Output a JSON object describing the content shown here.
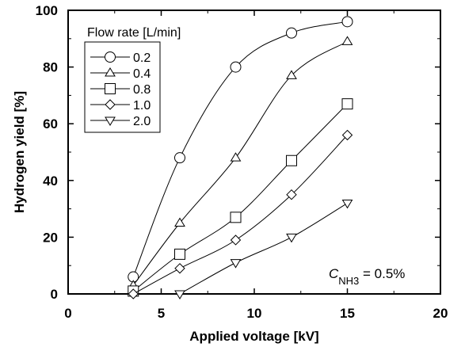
{
  "chart_data": {
    "type": "line",
    "xlabel": "Applied voltage [kV]",
    "ylabel": "Hydrogen yield [%]",
    "xlim": [
      0,
      20
    ],
    "ylim": [
      0,
      100
    ],
    "xticks": [
      "0",
      "5",
      "10",
      "15",
      "20"
    ],
    "yticks": [
      "0",
      "20",
      "40",
      "60",
      "80",
      "100"
    ],
    "grid": false,
    "legend": {
      "title": "Flow rate [L/min]",
      "position": "top-left"
    },
    "annotation": {
      "main": "C",
      "sub": "NH3",
      "rest": " = 0.5%",
      "position": "bottom-right"
    },
    "series": [
      {
        "name": "0.2",
        "marker": "circle",
        "x": [
          3.5,
          6,
          9,
          12,
          15
        ],
        "y": [
          6,
          48,
          80,
          92,
          96
        ]
      },
      {
        "name": "0.4",
        "marker": "triangle-up",
        "x": [
          3.5,
          6,
          9,
          12,
          15
        ],
        "y": [
          3,
          25,
          48,
          77,
          89
        ]
      },
      {
        "name": "0.8",
        "marker": "square",
        "x": [
          3.5,
          6,
          9,
          12,
          15
        ],
        "y": [
          1,
          14,
          27,
          47,
          67
        ]
      },
      {
        "name": "1.0",
        "marker": "diamond",
        "x": [
          3.5,
          6,
          9,
          12,
          15
        ],
        "y": [
          0,
          9,
          19,
          35,
          56
        ]
      },
      {
        "name": "2.0",
        "marker": "triangle-down",
        "x": [
          6,
          9,
          12,
          15
        ],
        "y": [
          0,
          11,
          20,
          32
        ]
      }
    ]
  }
}
